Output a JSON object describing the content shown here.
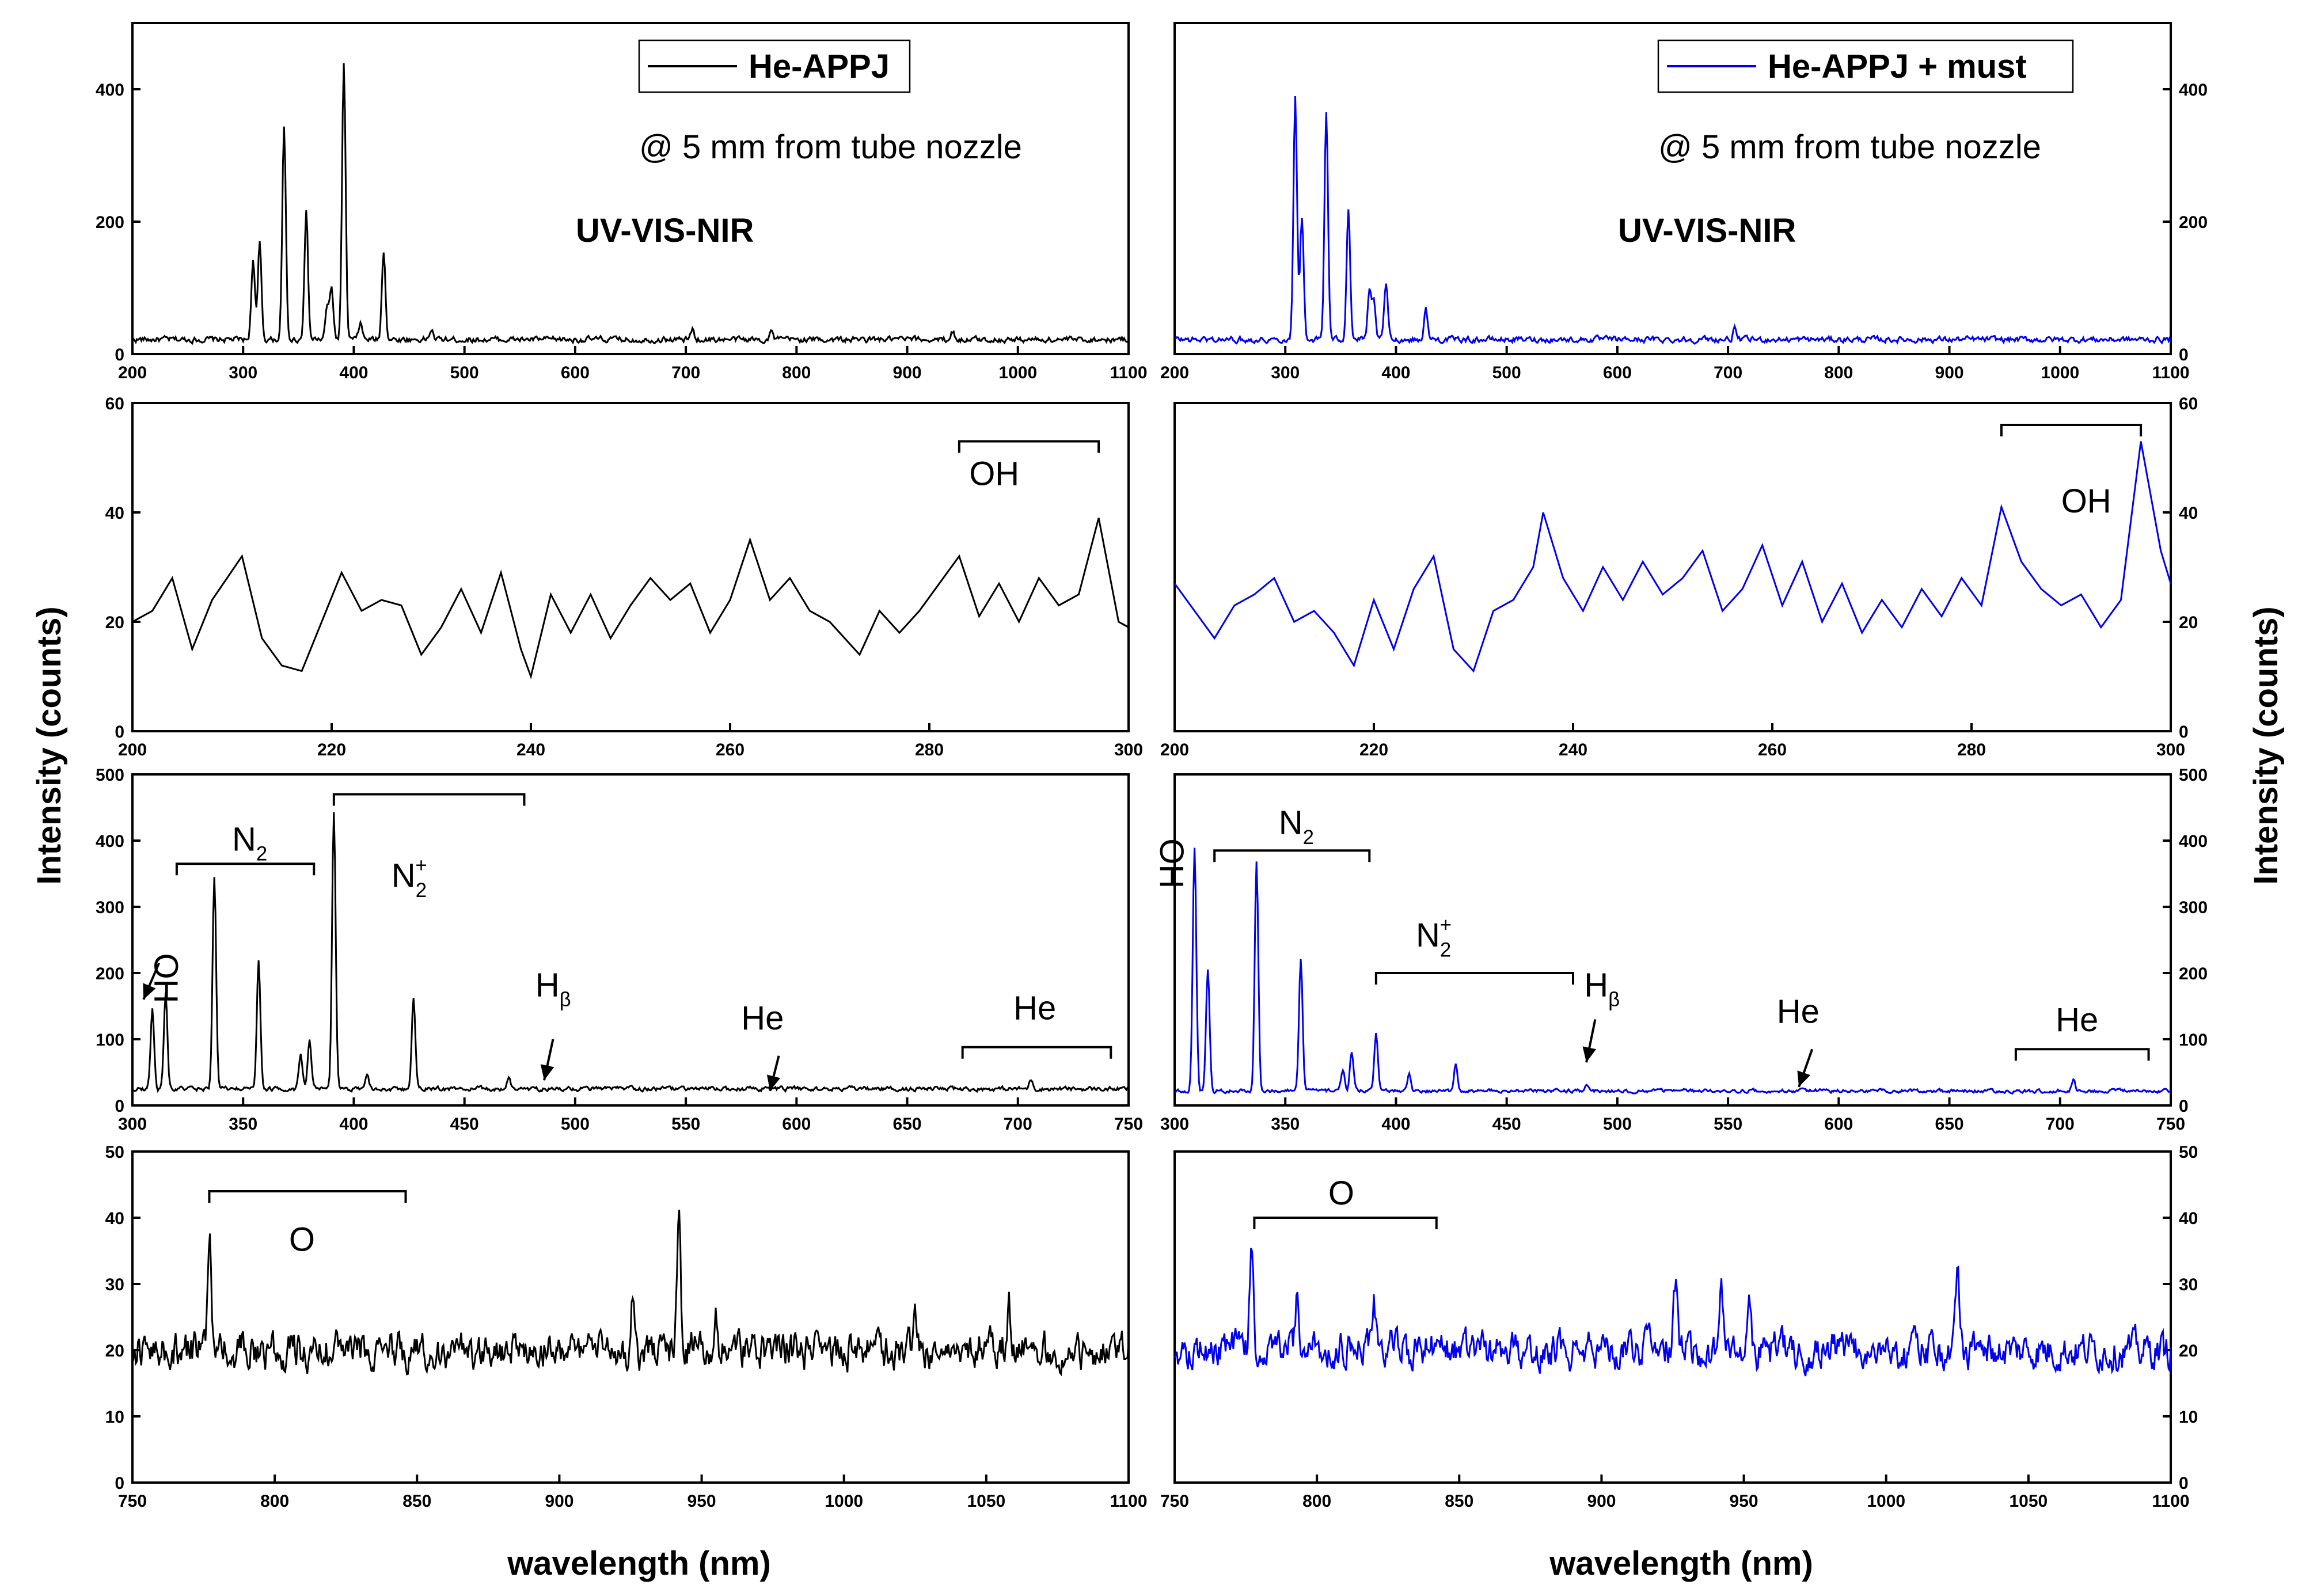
{
  "chart_data": {
    "type": "line",
    "xlabel": "wavelength (nm)",
    "ylabel": "Intensity (counts)",
    "colors": {
      "left": "#000000",
      "right": "#0000ee"
    },
    "series": [
      {
        "name": "He-APPJ",
        "color": "#000000"
      },
      {
        "name": "He-APPJ + must",
        "color": "#0000ee"
      }
    ],
    "panels": [
      {
        "id": "left-full",
        "series": "He-APPJ",
        "xlim": [
          200,
          1100
        ],
        "ylim": [
          0,
          500
        ],
        "xticks": [
          200,
          300,
          400,
          500,
          600,
          700,
          800,
          900,
          1000,
          1100
        ],
        "yticks": [
          0,
          200,
          400
        ],
        "baseline": 22,
        "noise": 8,
        "peaks": [
          [
            309,
            120
          ],
          [
            315,
            145
          ],
          [
            337,
            320
          ],
          [
            357,
            195
          ],
          [
            376,
            50
          ],
          [
            380,
            75
          ],
          [
            391,
            415
          ],
          [
            406,
            25
          ],
          [
            427,
            135
          ],
          [
            470,
            15
          ],
          [
            706,
            15
          ],
          [
            777,
            12
          ],
          [
            941,
            12
          ]
        ],
        "legend": "He-APPJ",
        "note": "@ 5 mm from tube nozzle",
        "region": "UV-VIS-NIR"
      },
      {
        "id": "right-full",
        "series": "He-APPJ + must",
        "xlim": [
          200,
          1100
        ],
        "ylim": [
          0,
          500
        ],
        "xticks": [
          200,
          300,
          400,
          500,
          600,
          700,
          800,
          900,
          1000,
          1100
        ],
        "yticks": [
          0,
          200,
          400
        ],
        "baseline": 22,
        "noise": 8,
        "peaks": [
          [
            309,
            370
          ],
          [
            315,
            185
          ],
          [
            337,
            345
          ],
          [
            357,
            200
          ],
          [
            376,
            70
          ],
          [
            380,
            55
          ],
          [
            391,
            85
          ],
          [
            427,
            45
          ],
          [
            706,
            15
          ]
        ],
        "legend": "He-APPJ + must",
        "note": "@ 5 mm from tube nozzle",
        "region": "UV-VIS-NIR"
      },
      {
        "id": "left-uv",
        "series": "He-APPJ",
        "xlim": [
          200,
          300
        ],
        "ylim": [
          0,
          60
        ],
        "xticks": [
          200,
          220,
          240,
          260,
          280,
          300
        ],
        "yticks": [
          0,
          20,
          40,
          60
        ],
        "x": [
          200,
          202,
          204,
          206,
          208,
          211,
          213,
          215,
          217,
          219,
          221,
          223,
          225,
          227,
          229,
          231,
          233,
          235,
          237,
          239,
          240,
          242,
          244,
          246,
          248,
          250,
          252,
          254,
          256,
          258,
          260,
          262,
          264,
          266,
          268,
          270,
          273,
          275,
          277,
          279,
          281,
          283,
          285,
          287,
          289,
          291,
          293,
          295,
          297,
          299,
          300
        ],
        "y": [
          20,
          22,
          28,
          15,
          24,
          32,
          17,
          12,
          11,
          20,
          29,
          22,
          24,
          23,
          14,
          19,
          26,
          18,
          29,
          15,
          10,
          25,
          18,
          25,
          17,
          23,
          28,
          24,
          27,
          18,
          24,
          35,
          24,
          28,
          22,
          20,
          14,
          22,
          18,
          22,
          27,
          32,
          21,
          27,
          20,
          28,
          23,
          25,
          39,
          20,
          19
        ]
      },
      {
        "id": "right-uv",
        "series": "He-APPJ + must",
        "xlim": [
          200,
          300
        ],
        "ylim": [
          0,
          60
        ],
        "xticks": [
          200,
          220,
          240,
          260,
          280,
          300
        ],
        "yticks": [
          0,
          20,
          40,
          60
        ],
        "x": [
          200,
          202,
          204,
          206,
          208,
          210,
          212,
          214,
          216,
          218,
          220,
          222,
          224,
          226,
          228,
          230,
          232,
          234,
          236,
          237,
          239,
          241,
          243,
          245,
          247,
          249,
          251,
          253,
          255,
          257,
          259,
          261,
          263,
          265,
          267,
          269,
          271,
          273,
          275,
          277,
          279,
          281,
          283,
          285,
          287,
          289,
          291,
          293,
          295,
          297,
          299,
          300
        ],
        "y": [
          27,
          22,
          17,
          23,
          25,
          28,
          20,
          22,
          18,
          12,
          24,
          15,
          26,
          32,
          15,
          11,
          22,
          24,
          30,
          40,
          28,
          22,
          30,
          24,
          31,
          25,
          28,
          33,
          22,
          26,
          34,
          23,
          31,
          20,
          27,
          18,
          24,
          19,
          26,
          21,
          28,
          23,
          41,
          31,
          26,
          23,
          25,
          19,
          24,
          53,
          33,
          27
        ]
      },
      {
        "id": "left-vis",
        "series": "He-APPJ",
        "xlim": [
          300,
          750
        ],
        "ylim": [
          0,
          500
        ],
        "xticks": [
          300,
          350,
          400,
          450,
          500,
          550,
          600,
          650,
          700,
          750
        ],
        "yticks": [
          0,
          100,
          200,
          300,
          400,
          500
        ],
        "baseline": 25,
        "noise": 6,
        "peaks": [
          [
            309,
            120
          ],
          [
            315,
            145
          ],
          [
            337,
            320
          ],
          [
            357,
            195
          ],
          [
            376,
            50
          ],
          [
            380,
            75
          ],
          [
            391,
            415
          ],
          [
            406,
            25
          ],
          [
            427,
            135
          ],
          [
            470,
            15
          ],
          [
            706,
            15
          ]
        ]
      },
      {
        "id": "right-vis",
        "series": "He-APPJ + must",
        "xlim": [
          300,
          750
        ],
        "ylim": [
          0,
          500
        ],
        "xticks": [
          300,
          350,
          400,
          450,
          500,
          550,
          600,
          650,
          700,
          750
        ],
        "yticks": [
          0,
          100,
          200,
          300,
          400,
          500
        ],
        "baseline": 22,
        "noise": 5,
        "peaks": [
          [
            309,
            370
          ],
          [
            315,
            185
          ],
          [
            337,
            345
          ],
          [
            357,
            200
          ],
          [
            376,
            30
          ],
          [
            380,
            60
          ],
          [
            391,
            85
          ],
          [
            406,
            25
          ],
          [
            427,
            40
          ],
          [
            486,
            10
          ],
          [
            706,
            18
          ]
        ]
      },
      {
        "id": "left-nir",
        "series": "He-APPJ",
        "xlim": [
          750,
          1100
        ],
        "ylim": [
          0,
          50
        ],
        "xticks": [
          750,
          800,
          850,
          900,
          950,
          1000,
          1050,
          1100
        ],
        "yticks": [
          0,
          10,
          20,
          30,
          40,
          50
        ],
        "baseline": 20,
        "noise": 5,
        "peaks": [
          [
            777,
            18
          ],
          [
            926,
            10
          ],
          [
            942,
            19
          ],
          [
            955,
            8
          ],
          [
            1025,
            6
          ],
          [
            1058,
            6
          ]
        ]
      },
      {
        "id": "right-nir",
        "series": "He-APPJ + must",
        "xlim": [
          750,
          1100
        ],
        "ylim": [
          0,
          50
        ],
        "xticks": [
          750,
          800,
          850,
          900,
          950,
          1000,
          1050,
          1100
        ],
        "yticks": [
          0,
          10,
          20,
          30,
          40,
          50
        ],
        "baseline": 20,
        "noise": 5,
        "peaks": [
          [
            777,
            16
          ],
          [
            793,
            8
          ],
          [
            820,
            8
          ],
          [
            926,
            10
          ],
          [
            942,
            12
          ],
          [
            952,
            10
          ],
          [
            1025,
            12
          ]
        ]
      }
    ],
    "annotations": {
      "left_uv_oh": "OH",
      "right_uv_oh": "OH",
      "oh": "OH",
      "n2": "N",
      "n2_sub": "2",
      "n2plus": "N",
      "n2plus_sub": "2",
      "n2plus_sup": "+",
      "hbeta": "H",
      "hbeta_sub": "β",
      "he": "He",
      "o": "O"
    }
  }
}
